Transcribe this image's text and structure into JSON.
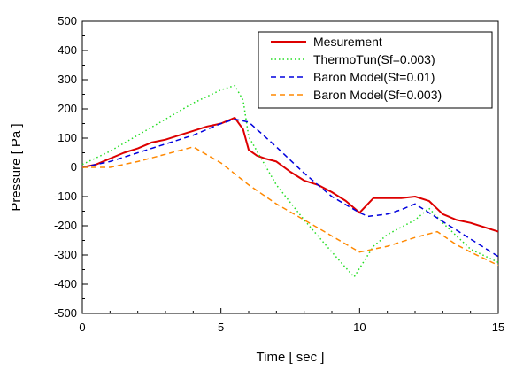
{
  "chart_data": {
    "type": "line",
    "title": "",
    "xlabel": "Time [ sec ]",
    "ylabel": "Pressure [ Pa ]",
    "xlim": [
      0,
      15
    ],
    "ylim": [
      -500,
      500
    ],
    "xticks": [
      0,
      5,
      10,
      15
    ],
    "yticks": [
      -500,
      -400,
      -300,
      -200,
      -100,
      0,
      100,
      200,
      300,
      400,
      500
    ],
    "grid": false,
    "legend_position": "top-right",
    "series": [
      {
        "name": "Mesurement",
        "color": "#dd0000",
        "style": "solid",
        "x": [
          0,
          0.5,
          1,
          1.5,
          2,
          2.5,
          3,
          3.5,
          4,
          4.5,
          5,
          5.5,
          5.8,
          6,
          6.3,
          6.6,
          7,
          7.5,
          8,
          8.5,
          9,
          9.5,
          10,
          10.5,
          11,
          11.5,
          12,
          12.5,
          13,
          13.5,
          14,
          14.5,
          15
        ],
        "y": [
          0,
          10,
          30,
          50,
          65,
          85,
          95,
          110,
          125,
          140,
          150,
          170,
          130,
          60,
          40,
          30,
          20,
          -15,
          -45,
          -60,
          -85,
          -115,
          -155,
          -105,
          -105,
          -105,
          -100,
          -115,
          -160,
          -180,
          -190,
          -205,
          -220
        ]
      },
      {
        "name": "ThermoTun(Sf=0.003)",
        "color": "#22dd22",
        "style": "dotted",
        "x": [
          0,
          1,
          2,
          3,
          4,
          5,
          5.5,
          5.8,
          6,
          7,
          8,
          9,
          9.8,
          10.5,
          11,
          12,
          12.5,
          13,
          14,
          15
        ],
        "y": [
          10,
          55,
          110,
          165,
          220,
          265,
          280,
          230,
          105,
          -60,
          -180,
          -290,
          -375,
          -270,
          -230,
          -180,
          -140,
          -190,
          -280,
          -325
        ]
      },
      {
        "name": "Baron Model(Sf=0.01)",
        "color": "#0000dd",
        "style": "dashed",
        "x": [
          0,
          1,
          2,
          3,
          4,
          5,
          5.5,
          6,
          7,
          8,
          9,
          10,
          10.3,
          11,
          11.5,
          12,
          13,
          14,
          15
        ],
        "y": [
          0,
          20,
          50,
          80,
          110,
          150,
          165,
          155,
          70,
          -20,
          -100,
          -155,
          -168,
          -160,
          -145,
          -125,
          -185,
          -245,
          -305
        ]
      },
      {
        "name": "Baron Model(Sf=0.003)",
        "color": "#ff8800",
        "style": "dashed",
        "x": [
          0,
          1,
          2,
          3,
          4,
          5,
          6,
          7,
          8,
          9,
          10,
          11,
          12,
          12.8,
          13.5,
          14,
          15
        ],
        "y": [
          0,
          0,
          20,
          45,
          70,
          15,
          -60,
          -125,
          -180,
          -235,
          -290,
          -270,
          -240,
          -220,
          -265,
          -290,
          -335
        ]
      }
    ]
  }
}
